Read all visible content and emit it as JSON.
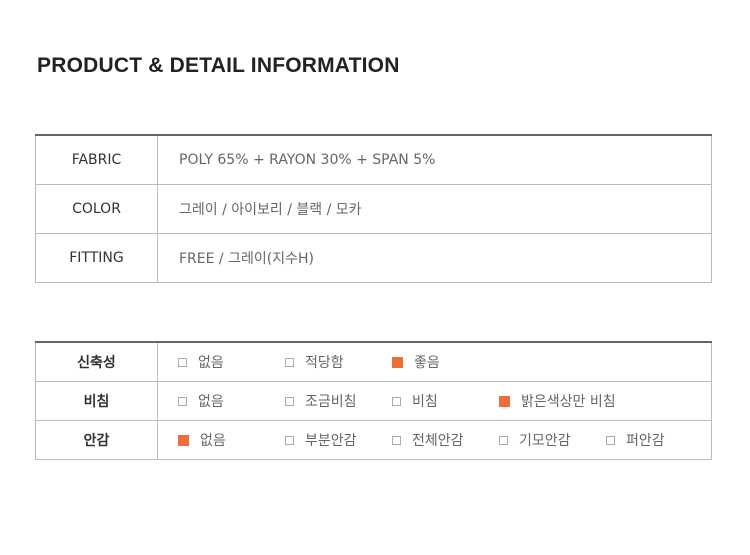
{
  "title": "PRODUCT & DETAIL INFORMATION",
  "info": [
    {
      "label": "FABRIC",
      "value": "POLY 65% + RAYON 30% + SPAN 5%"
    },
    {
      "label": "COLOR",
      "value": "그레이 / 아이보리 / 블랙 / 모카"
    },
    {
      "label": "FITTING",
      "value": "FREE / 그레이(지수H)"
    }
  ],
  "accent_color": "#ee6d3a",
  "details": [
    {
      "label": "신축성",
      "options": [
        {
          "label": "없음",
          "checked": false
        },
        {
          "label": "적당함",
          "checked": false
        },
        {
          "label": "좋음",
          "checked": true
        }
      ]
    },
    {
      "label": "비침",
      "options": [
        {
          "label": "없음",
          "checked": false
        },
        {
          "label": "조금비침",
          "checked": false
        },
        {
          "label": "비침",
          "checked": false
        },
        {
          "label": "밝은색상만 비침",
          "checked": true
        }
      ]
    },
    {
      "label": "안감",
      "options": [
        {
          "label": "없음",
          "checked": true
        },
        {
          "label": "부분안감",
          "checked": false
        },
        {
          "label": "전체안감",
          "checked": false
        },
        {
          "label": "기모안감",
          "checked": false
        },
        {
          "label": "퍼안감",
          "checked": false
        }
      ]
    }
  ]
}
